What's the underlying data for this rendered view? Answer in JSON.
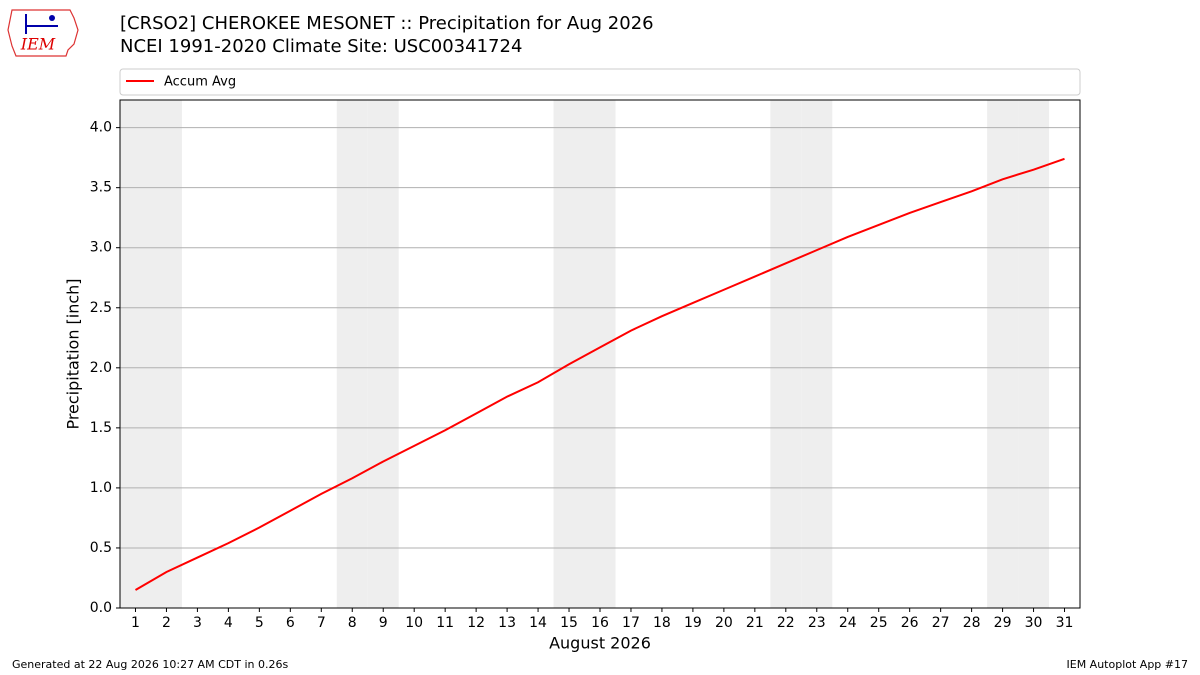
{
  "chart_data": {
    "type": "line",
    "title": "[CRSO2] CHEROKEE MESONET :: Precipitation for Aug 2026",
    "subtitle": "NCEI 1991-2020 Climate Site: USC00341724",
    "xlabel": "August 2026",
    "ylabel": "Precipitation [inch]",
    "x": [
      1,
      2,
      3,
      4,
      5,
      6,
      7,
      8,
      9,
      10,
      11,
      12,
      13,
      14,
      15,
      16,
      17,
      18,
      19,
      20,
      21,
      22,
      23,
      24,
      25,
      26,
      27,
      28,
      29,
      30,
      31
    ],
    "series": [
      {
        "name": "Accum Avg",
        "color": "#ff0000",
        "values": [
          0.15,
          0.3,
          0.42,
          0.54,
          0.67,
          0.81,
          0.95,
          1.08,
          1.22,
          1.35,
          1.48,
          1.62,
          1.76,
          1.88,
          2.03,
          2.17,
          2.31,
          2.43,
          2.54,
          2.65,
          2.76,
          2.87,
          2.98,
          3.09,
          3.19,
          3.29,
          3.38,
          3.47,
          3.57,
          3.65,
          3.74
        ]
      }
    ],
    "xlim": [
      0.5,
      31.5
    ],
    "xticks": [
      1,
      2,
      3,
      4,
      5,
      6,
      7,
      8,
      9,
      10,
      11,
      12,
      13,
      14,
      15,
      16,
      17,
      18,
      19,
      20,
      21,
      22,
      23,
      24,
      25,
      26,
      27,
      28,
      29,
      30,
      31
    ],
    "ylim": [
      0,
      4.23
    ],
    "yticks": [
      {
        "value": 0,
        "label": "0.0"
      },
      {
        "value": 0.5,
        "label": "0.5"
      },
      {
        "value": 1,
        "label": "1.0"
      },
      {
        "value": 1.5,
        "label": "1.5"
      },
      {
        "value": 2,
        "label": "2.0"
      },
      {
        "value": 2.5,
        "label": "2.5"
      },
      {
        "value": 3,
        "label": "3.0"
      },
      {
        "value": 3.5,
        "label": "3.5"
      },
      {
        "value": 4,
        "label": "4.0"
      }
    ],
    "shaded_days": [
      1,
      2,
      8,
      9,
      15,
      16,
      22,
      23,
      29,
      30
    ],
    "shade_color": "#eeeeee",
    "grid": true,
    "legend": "top"
  },
  "logo": "IEM",
  "footer": {
    "left": "Generated at 22 Aug 2026 10:27 AM CDT in 0.26s",
    "right": "IEM Autoplot App #17"
  }
}
